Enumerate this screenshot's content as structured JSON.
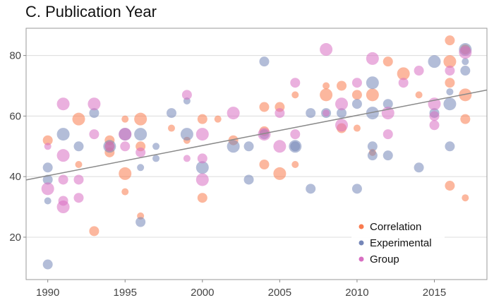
{
  "chart_data": {
    "type": "scatter",
    "title": "C. Publication Year",
    "xlabel": "",
    "ylabel": "",
    "xlim": [
      1988.6,
      2018.4
    ],
    "ylim": [
      6,
      89
    ],
    "xticks": [
      1990,
      1995,
      2000,
      2005,
      2010,
      2015
    ],
    "yticks": [
      20,
      40,
      60,
      80
    ],
    "grid": true,
    "legend_position": "bottom-right",
    "colors": {
      "Correlation": "#f97b4f",
      "Experimental": "#7586b8",
      "Group": "#d86fc2"
    },
    "trendline": {
      "x": [
        1988.6,
        2018.4
      ],
      "y": [
        38.9,
        68.6
      ]
    },
    "series": [
      {
        "name": "Correlation",
        "points": [
          [
            1990,
            52,
            2
          ],
          [
            1992,
            59,
            3
          ],
          [
            1992,
            44,
            1
          ],
          [
            1993,
            22,
            2
          ],
          [
            1994,
            52,
            2
          ],
          [
            1994,
            50,
            2
          ],
          [
            1994,
            48,
            2
          ],
          [
            1995,
            59,
            1
          ],
          [
            1995,
            41,
            3
          ],
          [
            1995,
            35,
            1
          ],
          [
            1996,
            59,
            3
          ],
          [
            1996,
            50,
            2
          ],
          [
            1996,
            27,
            1
          ],
          [
            1998,
            56,
            1
          ],
          [
            1999,
            52,
            1
          ],
          [
            2000,
            59,
            2
          ],
          [
            2000,
            33,
            2
          ],
          [
            2001,
            59,
            1
          ],
          [
            2002,
            52,
            2
          ],
          [
            2004,
            63,
            2
          ],
          [
            2004,
            55,
            2
          ],
          [
            2004,
            44,
            2
          ],
          [
            2005,
            63,
            2
          ],
          [
            2005,
            41,
            3
          ],
          [
            2006,
            67,
            1
          ],
          [
            2006,
            44,
            1
          ],
          [
            2008,
            70,
            1
          ],
          [
            2008,
            67,
            3
          ],
          [
            2009,
            70,
            2
          ],
          [
            2009,
            56,
            2
          ],
          [
            2010,
            67,
            2
          ],
          [
            2010,
            56,
            1
          ],
          [
            2011,
            67,
            3
          ],
          [
            2011,
            48,
            1
          ],
          [
            2012,
            78,
            2
          ],
          [
            2013,
            74,
            3
          ],
          [
            2014,
            67,
            1
          ],
          [
            2016,
            85,
            2
          ],
          [
            2016,
            78,
            3
          ],
          [
            2016,
            71,
            2
          ],
          [
            2016,
            37,
            2
          ],
          [
            2017,
            82,
            2
          ],
          [
            2017,
            67,
            3
          ],
          [
            2017,
            59,
            2
          ],
          [
            2017,
            33,
            1
          ]
        ]
      },
      {
        "name": "Experimental",
        "points": [
          [
            1990,
            11,
            2
          ],
          [
            1990,
            32,
            1
          ],
          [
            1990,
            39,
            2
          ],
          [
            1990,
            43,
            2
          ],
          [
            1991,
            54,
            3
          ],
          [
            1992,
            50,
            2
          ],
          [
            1993,
            61,
            2
          ],
          [
            1994,
            50,
            3
          ],
          [
            1995,
            54,
            3
          ],
          [
            1996,
            43,
            1
          ],
          [
            1996,
            25,
            2
          ],
          [
            1996,
            54,
            3
          ],
          [
            1997,
            50,
            1
          ],
          [
            1997,
            46,
            1
          ],
          [
            1998,
            61,
            2
          ],
          [
            1999,
            54,
            3
          ],
          [
            1999,
            65,
            1
          ],
          [
            2000,
            43,
            3
          ],
          [
            2002,
            50,
            3
          ],
          [
            2003,
            50,
            2
          ],
          [
            2003,
            39,
            2
          ],
          [
            2004,
            78,
            2
          ],
          [
            2004,
            54,
            2
          ],
          [
            2006,
            50,
            3
          ],
          [
            2006,
            50,
            2
          ],
          [
            2007,
            61,
            2
          ],
          [
            2007,
            36,
            2
          ],
          [
            2008,
            61,
            2
          ],
          [
            2009,
            61,
            2
          ],
          [
            2010,
            64,
            2
          ],
          [
            2010,
            36,
            2
          ],
          [
            2011,
            71,
            3
          ],
          [
            2011,
            61,
            3
          ],
          [
            2011,
            50,
            2
          ],
          [
            2011,
            47,
            2
          ],
          [
            2012,
            64,
            2
          ],
          [
            2012,
            47,
            2
          ],
          [
            2014,
            43,
            2
          ],
          [
            2015,
            78,
            3
          ],
          [
            2015,
            61,
            2
          ],
          [
            2016,
            64,
            3
          ],
          [
            2016,
            68,
            1
          ],
          [
            2016,
            50,
            2
          ],
          [
            2017,
            82,
            3
          ],
          [
            2017,
            78,
            1
          ],
          [
            2017,
            75,
            2
          ]
        ]
      },
      {
        "name": "Group",
        "points": [
          [
            1990,
            36,
            3
          ],
          [
            1990,
            50,
            1
          ],
          [
            1991,
            64,
            3
          ],
          [
            1991,
            47,
            3
          ],
          [
            1991,
            39,
            2
          ],
          [
            1991,
            32,
            2
          ],
          [
            1991,
            30,
            3
          ],
          [
            1992,
            39,
            2
          ],
          [
            1992,
            33,
            2
          ],
          [
            1993,
            64,
            3
          ],
          [
            1993,
            54,
            2
          ],
          [
            1994,
            50,
            2
          ],
          [
            1995,
            54,
            3
          ],
          [
            1995,
            50,
            2
          ],
          [
            1996,
            48,
            2
          ],
          [
            1999,
            67,
            2
          ],
          [
            1999,
            46,
            1
          ],
          [
            2000,
            54,
            3
          ],
          [
            2000,
            46,
            2
          ],
          [
            2000,
            39,
            3
          ],
          [
            2002,
            61,
            3
          ],
          [
            2004,
            54,
            3
          ],
          [
            2005,
            61,
            2
          ],
          [
            2005,
            50,
            3
          ],
          [
            2006,
            71,
            2
          ],
          [
            2006,
            54,
            2
          ],
          [
            2008,
            82,
            3
          ],
          [
            2008,
            61,
            1
          ],
          [
            2009,
            64,
            3
          ],
          [
            2009,
            57,
            3
          ],
          [
            2010,
            71,
            2
          ],
          [
            2011,
            79,
            3
          ],
          [
            2012,
            61,
            3
          ],
          [
            2012,
            54,
            2
          ],
          [
            2013,
            71,
            2
          ],
          [
            2014,
            75,
            2
          ],
          [
            2015,
            64,
            3
          ],
          [
            2015,
            60,
            2
          ],
          [
            2015,
            57,
            2
          ],
          [
            2016,
            75,
            2
          ],
          [
            2017,
            81,
            3
          ]
        ]
      }
    ]
  }
}
